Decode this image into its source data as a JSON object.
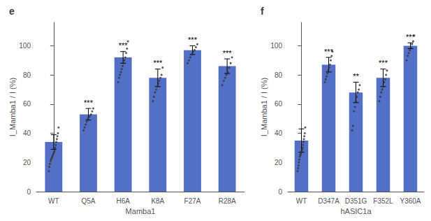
{
  "chart_data": [
    {
      "type": "bar",
      "title": "e",
      "categories": [
        "WT",
        "Q5A",
        "H6A",
        "K8A",
        "F27A",
        "R28A"
      ],
      "values": [
        34,
        53,
        92,
        78,
        97,
        86
      ],
      "errors": [
        5,
        4,
        4,
        6,
        3,
        5
      ],
      "points": [
        [
          14,
          17,
          19,
          21,
          22,
          23,
          24,
          25,
          26,
          27,
          28,
          30,
          32,
          34,
          36,
          38,
          40,
          44
        ],
        [
          42,
          44,
          46,
          48,
          50,
          51,
          52,
          53,
          55,
          57
        ],
        [
          75,
          78,
          80,
          82,
          84,
          86,
          88,
          90,
          92,
          95,
          98,
          103
        ],
        [
          62,
          65,
          68,
          70,
          72,
          74,
          76,
          78,
          80,
          85
        ],
        [
          88,
          90,
          92,
          94,
          96,
          97,
          99,
          101
        ],
        [
          73,
          76,
          78,
          80,
          82,
          85,
          88,
          92
        ]
      ],
      "significance": [
        null,
        "***",
        "***",
        "***",
        "***",
        "***"
      ],
      "xlabel": "Mamba1",
      "ylabel": "I_Mamba1 / I (%)",
      "ylim": [
        0,
        116
      ],
      "yticks": [
        0,
        20,
        40,
        60,
        80,
        100
      ],
      "grid": false
    },
    {
      "type": "bar",
      "title": "f",
      "categories": [
        "WT",
        "D347A",
        "D351G",
        "F352L",
        "Y360A"
      ],
      "values": [
        35,
        87,
        68,
        78,
        100
      ],
      "errors": [
        8,
        5,
        7,
        6,
        2
      ],
      "points": [
        [
          14,
          16,
          18,
          20,
          22,
          24,
          25,
          26,
          27,
          28,
          29,
          30,
          32,
          34,
          36,
          38,
          40,
          44
        ],
        [
          75,
          77,
          79,
          81,
          83,
          85,
          87,
          90,
          93,
          96
        ],
        [
          42,
          45,
          55,
          58,
          62,
          65,
          68,
          70,
          73
        ],
        [
          62,
          65,
          68,
          70,
          72,
          75,
          77,
          80,
          83
        ],
        [
          90,
          93,
          95,
          97,
          99,
          101,
          103,
          107
        ]
      ],
      "significance": [
        null,
        "***",
        "**",
        "***",
        "***"
      ],
      "xlabel": "hASIC1a",
      "ylabel": "I_Mamba1 / I (%)",
      "ylim": [
        0,
        116
      ],
      "yticks": [
        0,
        20,
        40,
        60,
        80,
        100
      ],
      "grid": false
    }
  ]
}
